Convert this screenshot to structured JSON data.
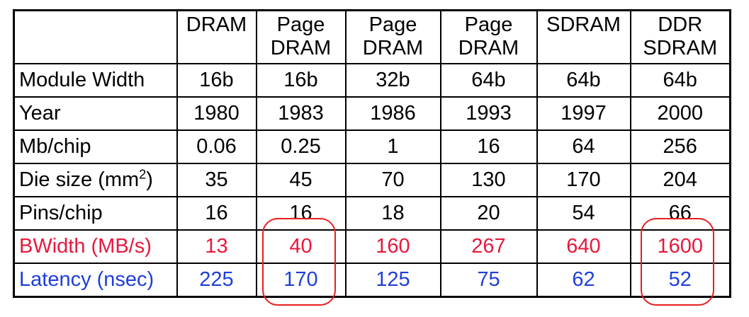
{
  "table": {
    "corner": "",
    "headers": [
      {
        "line1": "DRAM",
        "line2": ""
      },
      {
        "line1": "Page",
        "line2": "DRAM"
      },
      {
        "line1": "Page",
        "line2": "DRAM"
      },
      {
        "line1": "Page",
        "line2": "DRAM"
      },
      {
        "line1": "SDRAM",
        "line2": ""
      },
      {
        "line1": "DDR",
        "line2": "SDRAM"
      }
    ],
    "rows": [
      {
        "label": "Module Width",
        "values": [
          "16b",
          "16b",
          "32b",
          "64b",
          "64b",
          "64b"
        ]
      },
      {
        "label": "Year",
        "values": [
          "1980",
          "1983",
          "1986",
          "1993",
          "1997",
          "2000"
        ]
      },
      {
        "label": "Mb/chip",
        "values": [
          "0.06",
          "0.25",
          "1",
          "16",
          "64",
          "256"
        ]
      },
      {
        "label": "Die size (mm",
        "label_sup": "2",
        "label_end": ")",
        "values": [
          "35",
          "45",
          "70",
          "130",
          "170",
          "204"
        ]
      },
      {
        "label": "Pins/chip",
        "values": [
          "16",
          "16",
          "18",
          "20",
          "54",
          "66"
        ]
      },
      {
        "label": "BWidth (MB/s)",
        "values": [
          "13",
          "40",
          "160",
          "267",
          "640",
          "1600"
        ]
      },
      {
        "label": "Latency (nsec)",
        "values": [
          "225",
          "170",
          "125",
          "75",
          "62",
          "52"
        ]
      }
    ]
  },
  "colors": {
    "bandwidth_text": "#e8183c",
    "latency_text": "#1f3fd8",
    "highlight_outline": "#e81e1e"
  },
  "highlighted_columns": [
    1,
    5
  ]
}
